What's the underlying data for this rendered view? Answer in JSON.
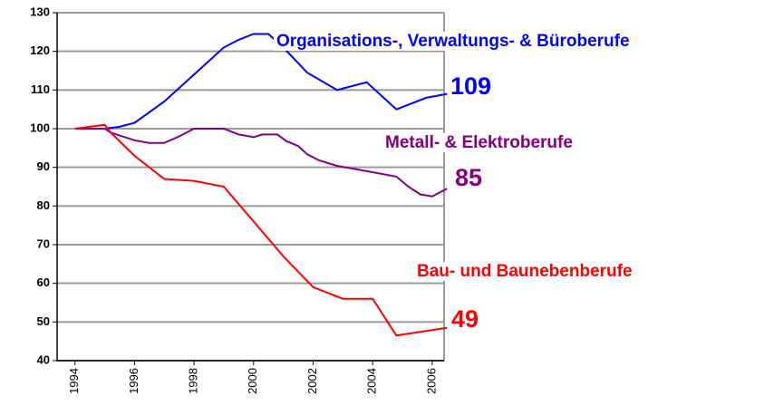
{
  "chart_data": {
    "type": "line",
    "xlim": [
      1993.4,
      2006.4
    ],
    "xticks": [
      1994,
      1996,
      1998,
      2000,
      2002,
      2004,
      2006
    ],
    "ylim": [
      40,
      130
    ],
    "yticks": [
      40,
      50,
      60,
      70,
      80,
      90,
      100,
      110,
      120,
      130
    ],
    "grid": true,
    "series": [
      {
        "name": "Organisations-, Verwaltungs- & Büroberufe",
        "color": "#0000ff",
        "end_label": "109",
        "x": [
          1994,
          1995,
          1995.5,
          1996,
          1997,
          1998,
          1999,
          1999.5,
          2000,
          2000.5,
          2001,
          2001.8,
          2002.8,
          2003.8,
          2004.8,
          2005.8,
          2006.5
        ],
        "values": [
          100,
          100,
          100.5,
          101.5,
          107,
          114,
          121,
          123,
          124.5,
          124.5,
          121,
          114.5,
          110,
          112,
          105,
          108,
          109
        ]
      },
      {
        "name": "Metall- & Elektroberufe",
        "color": "#800080",
        "end_label": "85",
        "x": [
          1994,
          1995,
          1995.2,
          1996,
          1996.5,
          1997,
          1997.5,
          1998,
          1999,
          1999.5,
          2000,
          2000.3,
          2000.8,
          2001.1,
          2001.5,
          2001.8,
          2002.2,
          2002.8,
          2003.8,
          2004.8,
          2005.2,
          2005.6,
          2006,
          2006.5
        ],
        "values": [
          100,
          100,
          99,
          97,
          96.3,
          96.3,
          98,
          100,
          100,
          98.5,
          97.8,
          98.5,
          98.5,
          96.8,
          95.5,
          93.4,
          91.8,
          90.4,
          89,
          87.6,
          85,
          83,
          82.5,
          84.5
        ]
      },
      {
        "name": "Bau- und Baunebenberufe",
        "color": "#ff0000",
        "end_label": "49",
        "x": [
          1994,
          1995,
          1995.2,
          1996,
          1997,
          1998,
          1999,
          2000,
          2001,
          2002,
          2003,
          2004,
          2004.8,
          2006.5
        ],
        "values": [
          100,
          101,
          99,
          93,
          87,
          86.5,
          85,
          76,
          67,
          59,
          56,
          56,
          46.5,
          48.5
        ]
      }
    ]
  }
}
